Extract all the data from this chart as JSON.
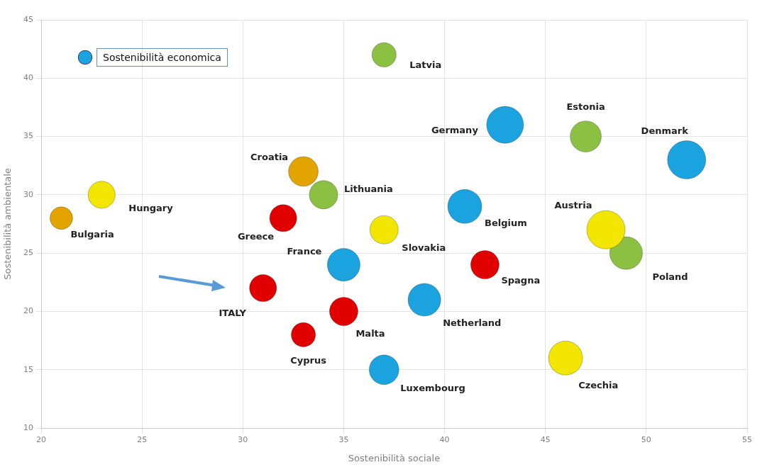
{
  "chart_data": {
    "type": "bubble",
    "xlabel": "Sostenibilità sociale",
    "ylabel": "Sostenibilità ambientale",
    "xlim": [
      20,
      55
    ],
    "xticks": [
      20,
      25,
      30,
      35,
      40,
      45,
      50,
      55
    ],
    "ylim": [
      10,
      45
    ],
    "yticks": [
      10,
      15,
      20,
      25,
      30,
      35,
      40,
      45
    ],
    "grid": true,
    "legend": false,
    "annotations": [
      "Sostenibilità economica"
    ],
    "series": [
      {
        "name": "Latvia",
        "color": "#8cc043",
        "x": [
          37
        ],
        "values": [
          42
        ],
        "sizes": [
          0.4
        ]
      },
      {
        "name": "Germany",
        "color": "#1ba3e0",
        "x": [
          43
        ],
        "values": [
          36
        ],
        "sizes": [
          0.93
        ]
      },
      {
        "name": "Estonia",
        "color": "#8cc043",
        "x": [
          47
        ],
        "values": [
          35
        ],
        "sizes": [
          0.66
        ]
      },
      {
        "name": "Denmark",
        "color": "#1ba3e0",
        "x": [
          52
        ],
        "values": [
          33
        ],
        "sizes": [
          1
        ]
      },
      {
        "name": "Croatia",
        "color": "#e3a300",
        "x": [
          33
        ],
        "values": [
          32
        ],
        "sizes": [
          0.6
        ]
      },
      {
        "name": "Lithuania",
        "color": "#8cc043",
        "x": [
          34
        ],
        "values": [
          30
        ],
        "sizes": [
          0.55
        ]
      },
      {
        "name": "Hungary",
        "color": "#f2e600",
        "x": [
          23
        ],
        "values": [
          30
        ],
        "sizes": [
          0.5
        ]
      },
      {
        "name": "Bulgaria",
        "color": "#e3a300",
        "x": [
          21
        ],
        "values": [
          28
        ],
        "sizes": [
          0.35
        ]
      },
      {
        "name": "Greece",
        "color": "#e00000",
        "x": [
          32
        ],
        "values": [
          28
        ],
        "sizes": [
          0.5
        ]
      },
      {
        "name": "Belgium",
        "color": "#1ba3e0",
        "x": [
          41
        ],
        "values": [
          29
        ],
        "sizes": [
          0.79
        ]
      },
      {
        "name": "Slovakia",
        "color": "#f2e600",
        "x": [
          37
        ],
        "values": [
          27
        ],
        "sizes": [
          0.55
        ]
      },
      {
        "name": "Austria",
        "color": "#f2e600",
        "x": [
          48
        ],
        "values": [
          27
        ],
        "sizes": [
          1
        ]
      },
      {
        "name": "Poland",
        "color": "#8cc043",
        "x": [
          49
        ],
        "values": [
          25
        ],
        "sizes": [
          0.73
        ]
      },
      {
        "name": "France",
        "color": "#1ba3e0",
        "x": [
          35
        ],
        "values": [
          24
        ],
        "sizes": [
          0.73
        ]
      },
      {
        "name": "Spagna",
        "color": "#e00000",
        "x": [
          42
        ],
        "values": [
          24
        ],
        "sizes": [
          0.55
        ]
      },
      {
        "name": "ITALY",
        "color": "#e00000",
        "x": [
          31
        ],
        "values": [
          22
        ],
        "sizes": [
          0.5
        ]
      },
      {
        "name": "Netherland",
        "color": "#1ba3e0",
        "x": [
          39
        ],
        "values": [
          21
        ],
        "sizes": [
          0.73
        ]
      },
      {
        "name": "Malta",
        "color": "#e00000",
        "x": [
          35
        ],
        "values": [
          20
        ],
        "sizes": [
          0.55
        ]
      },
      {
        "name": "Cyprus",
        "color": "#e00000",
        "x": [
          33
        ],
        "values": [
          18
        ],
        "sizes": [
          0.4
        ]
      },
      {
        "name": "Czechia",
        "color": "#f2e600",
        "x": [
          46
        ],
        "values": [
          16
        ],
        "sizes": [
          0.79
        ]
      },
      {
        "name": "Luxembourg",
        "color": "#1ba3e0",
        "x": [
          37
        ],
        "values": [
          15
        ],
        "sizes": [
          0.6
        ]
      }
    ]
  }
}
